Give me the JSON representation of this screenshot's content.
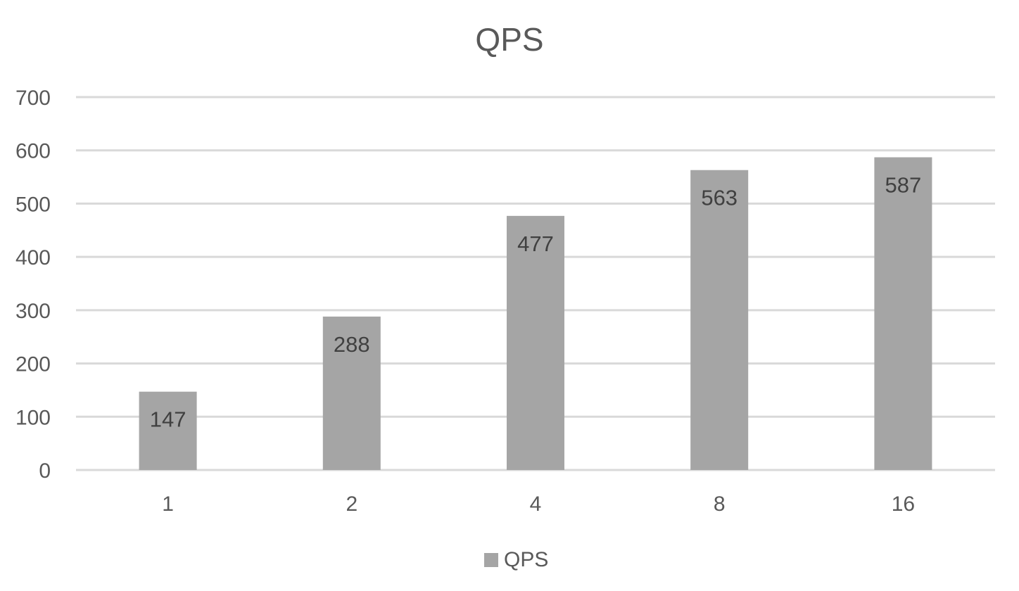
{
  "chart_data": {
    "type": "bar",
    "title": "QPS",
    "categories": [
      "1",
      "2",
      "4",
      "8",
      "16"
    ],
    "series": [
      {
        "name": "QPS",
        "values": [
          147,
          288,
          477,
          563,
          587
        ],
        "color": "#a5a5a5"
      }
    ],
    "xlabel": "",
    "ylabel": "",
    "ylim": [
      0,
      700
    ],
    "yticks": [
      0,
      100,
      200,
      300,
      400,
      500,
      600,
      700
    ],
    "grid": true,
    "data_labels": true,
    "legend_position": "bottom"
  }
}
